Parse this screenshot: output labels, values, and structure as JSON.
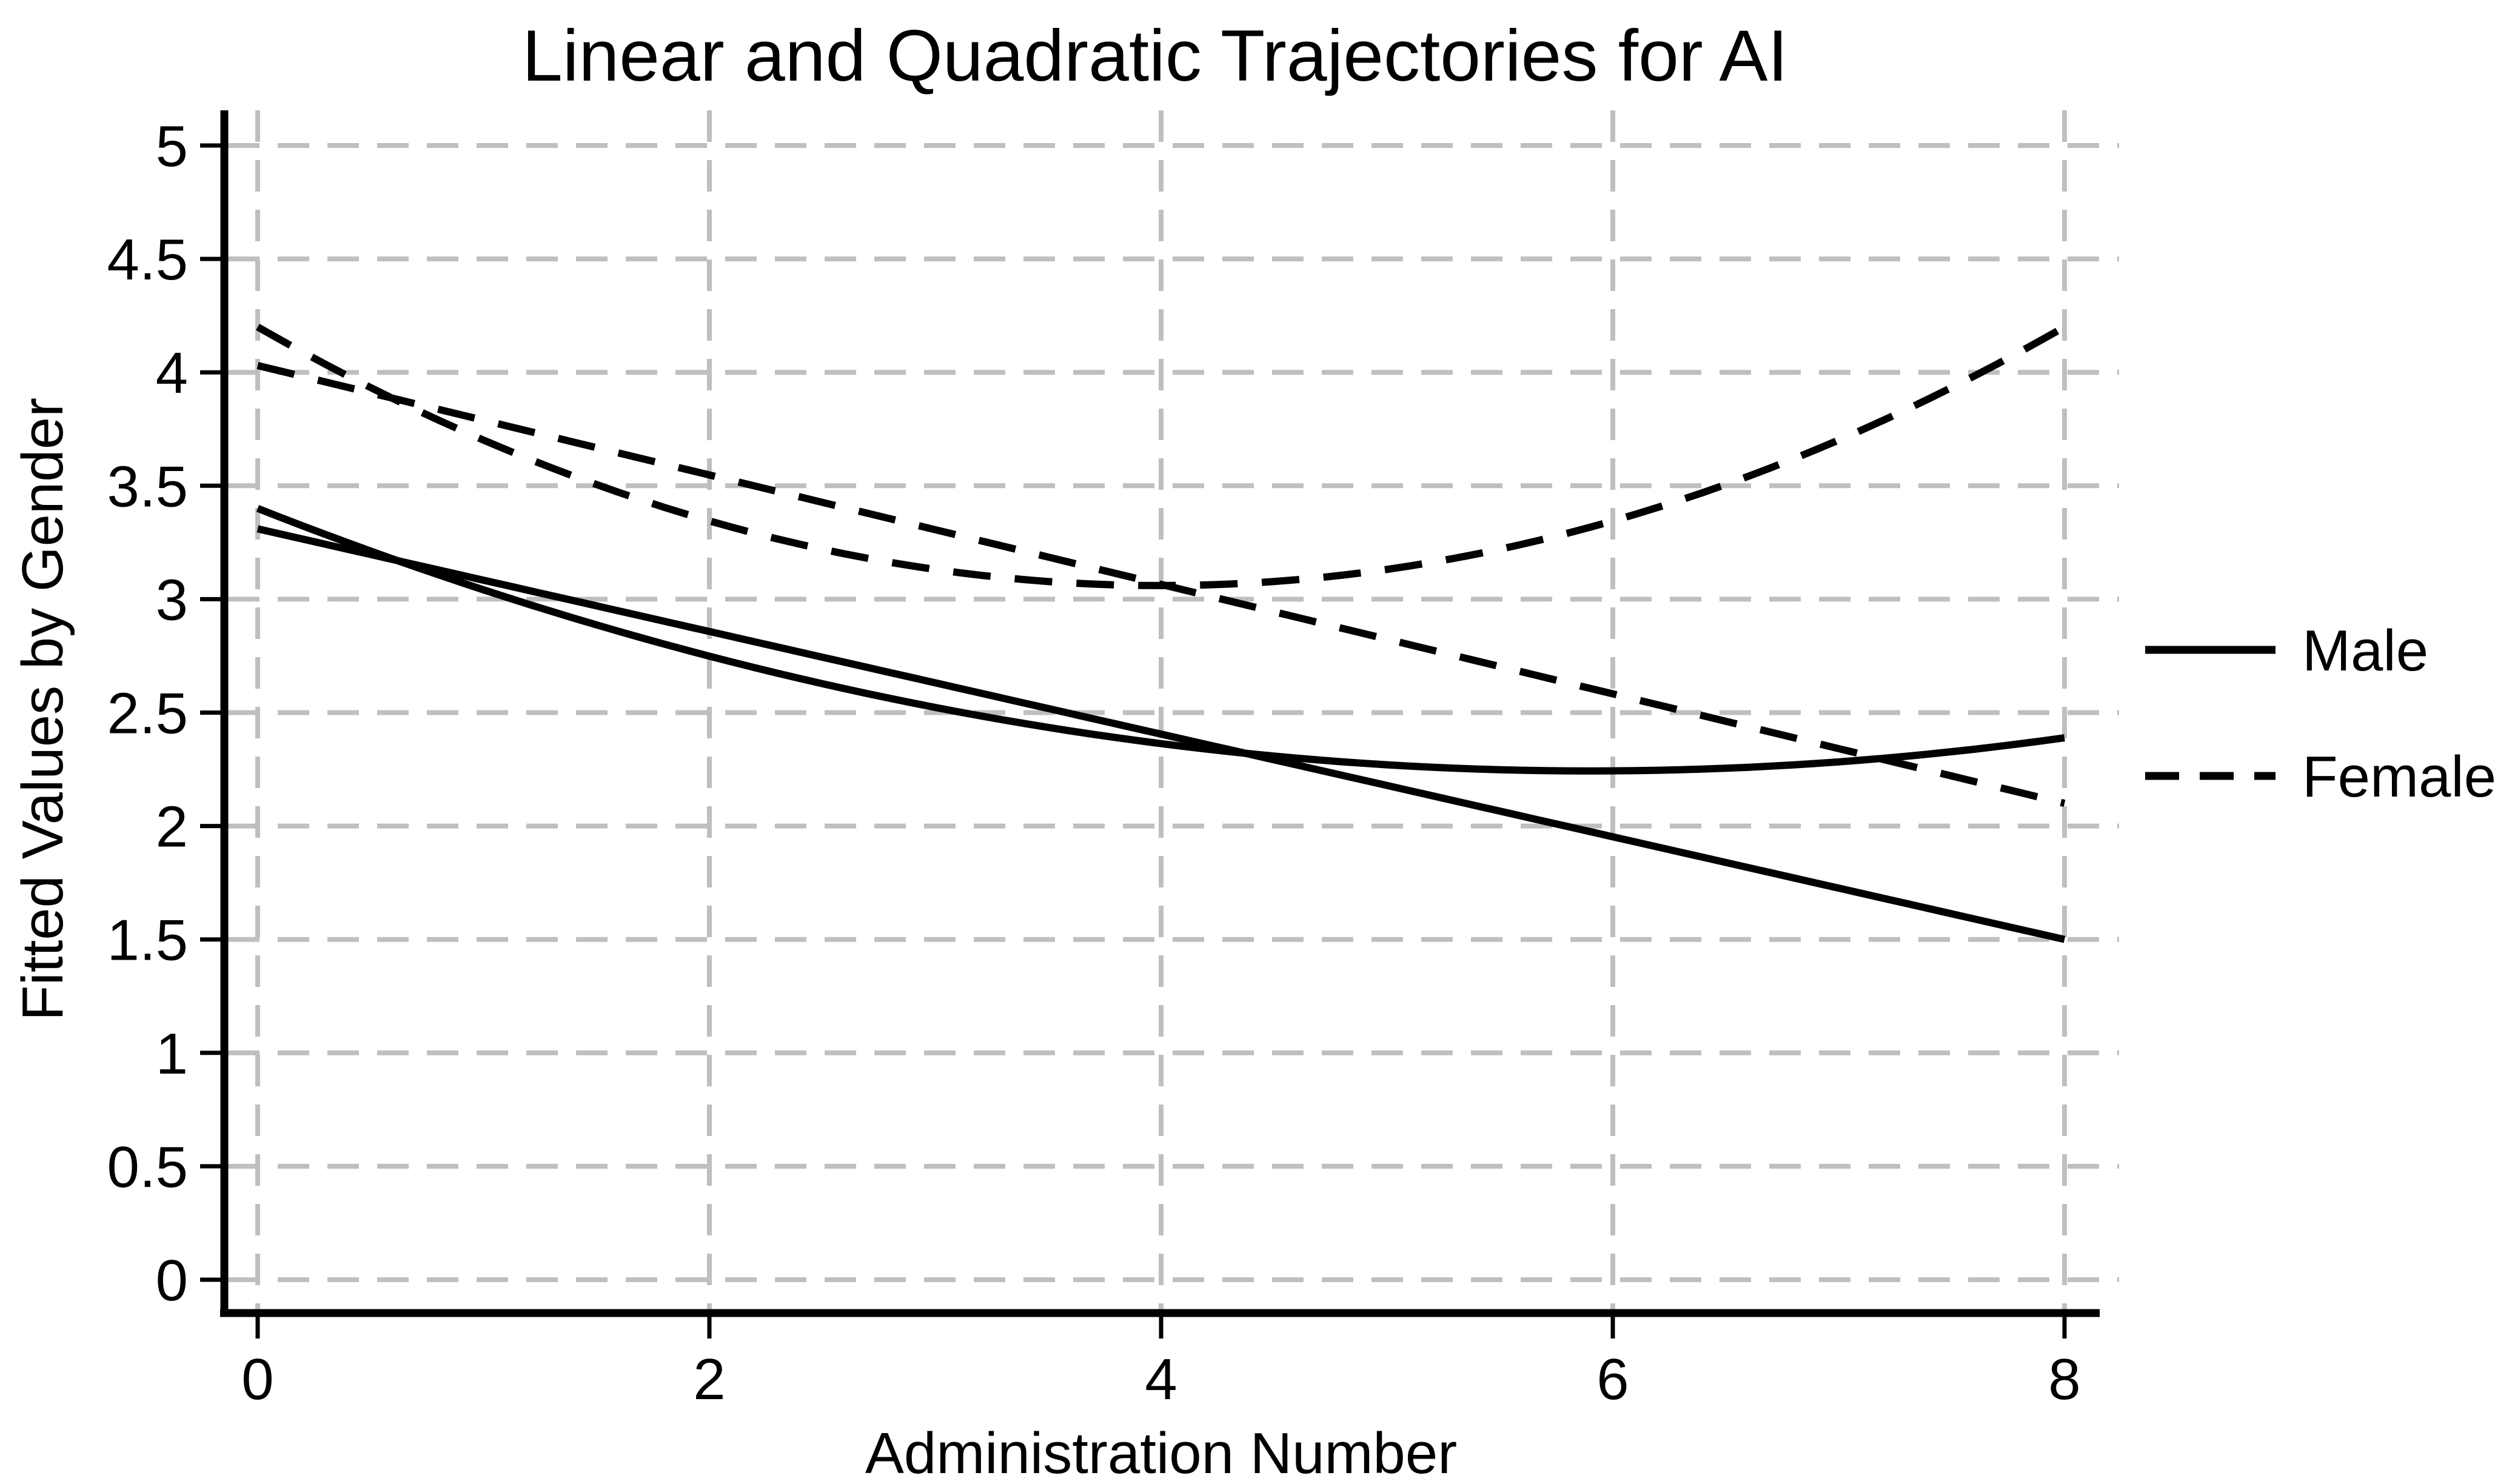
{
  "chart_data": {
    "type": "line",
    "title": "Linear and Quadratic Trajectories for AI",
    "xlabel": "Administration Number",
    "ylabel": "Fitted Values by Gender",
    "xlim": [
      0,
      8
    ],
    "ylim": [
      0,
      5
    ],
    "grid": true,
    "grid_style": "dashed",
    "legend_position": "right-outside",
    "x_ticks": [
      0,
      2,
      4,
      6,
      8
    ],
    "x_tick_labels": [
      "0",
      "2",
      "4",
      "6",
      "8"
    ],
    "y_ticks": [
      0,
      0.5,
      1,
      1.5,
      2,
      2.5,
      3,
      3.5,
      4,
      4.5,
      5
    ],
    "y_tick_labels": [
      "0",
      "0.5",
      "1",
      "1.5",
      "2",
      "2.5",
      "3",
      "3.5",
      "4",
      "4.5",
      "5"
    ],
    "legend": [
      {
        "label": "Male",
        "line_style": "solid"
      },
      {
        "label": "Female",
        "line_style": "dashed"
      }
    ],
    "x": [
      0,
      1,
      2,
      3,
      4,
      5,
      6,
      7,
      8
    ],
    "series": [
      {
        "name": "Male linear trajectory",
        "gender": "Male",
        "line_style": "solid",
        "coeffs": [
          3.31,
          -0.22625,
          0
        ],
        "values": [
          3.31,
          3.08,
          2.86,
          2.63,
          2.41,
          2.18,
          1.95,
          1.73,
          1.5
        ]
      },
      {
        "name": "Male quadratic trajectory",
        "gender": "Male",
        "line_style": "solid",
        "coeffs": [
          3.4,
          -0.392,
          0.0332
        ],
        "values": [
          3.4,
          3.04,
          2.75,
          2.52,
          2.36,
          2.27,
          2.24,
          2.28,
          2.39
        ]
      },
      {
        "name": "Female linear trajectory",
        "gender": "Female",
        "line_style": "dashed",
        "coeffs": [
          4.03,
          -0.24125,
          0
        ],
        "values": [
          4.03,
          3.79,
          3.55,
          3.31,
          3.06,
          2.82,
          2.58,
          2.34,
          2.1
        ]
      },
      {
        "name": "Female quadratic trajectory",
        "gender": "Female",
        "line_style": "dashed",
        "coeffs": [
          4.2,
          -0.57,
          0.07125
        ],
        "values": [
          4.2,
          3.7,
          3.35,
          3.13,
          3.06,
          3.13,
          3.35,
          3.7,
          4.2
        ]
      }
    ],
    "colors": {
      "line": "#000000",
      "grid": "#bfbfbf",
      "background": "#ffffff",
      "text": "#000000"
    }
  }
}
